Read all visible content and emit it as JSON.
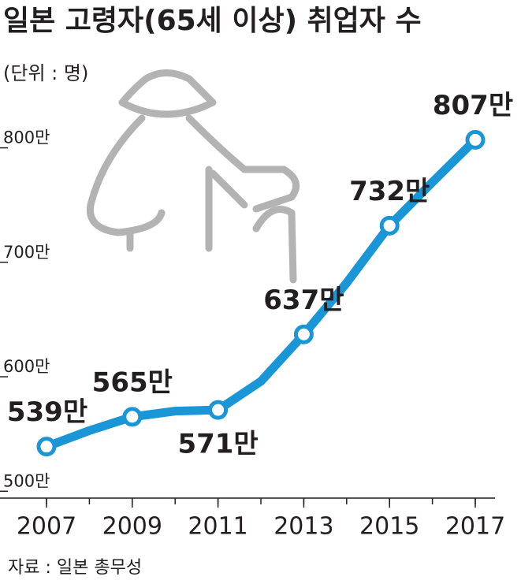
{
  "chart_data": {
    "type": "line",
    "title": "일본 고령자(65세 이상) 취업자 수",
    "unit_note": "(단위 : 명)",
    "source": "자료 : 일본 총무성",
    "x": [
      2007,
      2008,
      2009,
      2010,
      2011,
      2012,
      2013,
      2014,
      2015,
      2016,
      2017
    ],
    "series": [
      {
        "color": "#1a95d6",
        "values": [
          539,
          553,
          565,
          570,
          571,
          596,
          637,
          682,
          732,
          770,
          807
        ],
        "value_labels": [
          "539만",
          null,
          "565만",
          null,
          "571만",
          null,
          "637만",
          null,
          "732만",
          null,
          "807만"
        ]
      }
    ],
    "xlim": [
      2007,
      2017
    ],
    "xticks": [
      2007,
      2009,
      2011,
      2013,
      2015,
      2017
    ],
    "ylim": [
      494,
      830
    ],
    "yticks": [
      {
        "value": 500,
        "label": "500만"
      },
      {
        "value": 600,
        "label": "600만"
      },
      {
        "value": 700,
        "label": "700만"
      },
      {
        "value": 800,
        "label": "800만"
      }
    ]
  }
}
